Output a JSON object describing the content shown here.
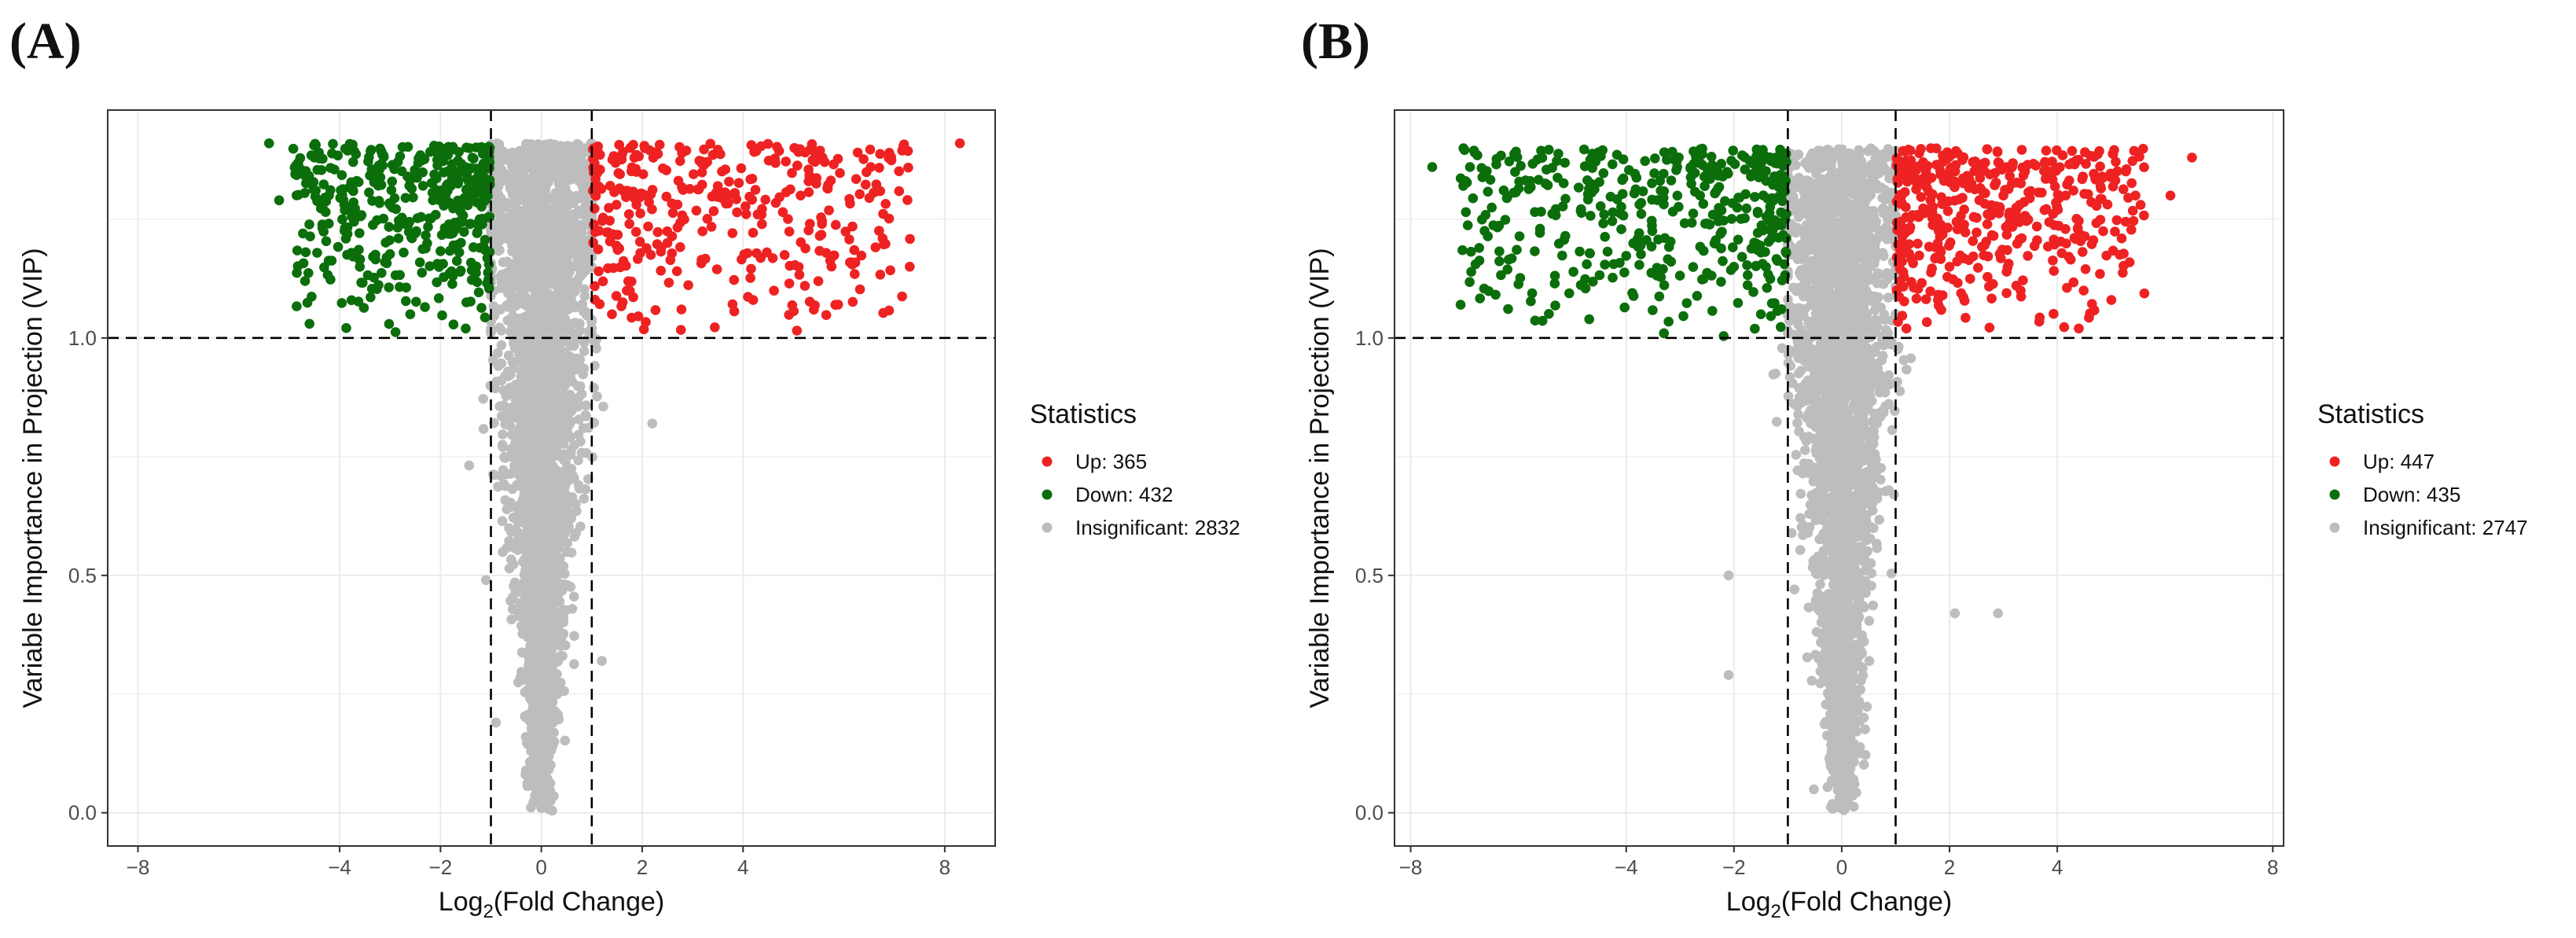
{
  "chart_data": [
    {
      "type": "scatter",
      "panel_label": "(A)",
      "title": "",
      "xlabel_main": "Log",
      "xlabel_sub": "2",
      "xlabel_rest": "(Fold Change)",
      "ylabel": "Variable Importance in Projection (VIP)",
      "xlim": [
        -8.6,
        9.0
      ],
      "ylim": [
        -0.07,
        1.48
      ],
      "x_ticks": [
        -8,
        -4,
        -2,
        0,
        2,
        4,
        8
      ],
      "x_tick_labels": [
        "−8",
        "−4",
        "−2",
        "0",
        "2",
        "4",
        "8"
      ],
      "y_ticks": [
        0.0,
        0.5,
        1.0
      ],
      "y_tick_labels": [
        "0.0",
        "0.5",
        "1.0"
      ],
      "thresholds": {
        "fold_change": [
          -1,
          1
        ],
        "vip": 1.0
      },
      "grid": true,
      "legend": {
        "title": "Statistics",
        "position": "right",
        "entries": [
          {
            "label": "Up: 365",
            "color": "#ee2222"
          },
          {
            "label": "Down: 432",
            "color": "#0b6e0b"
          },
          {
            "label": "Insignificant: 2832",
            "color": "#bdbdbd"
          }
        ]
      },
      "series": [
        {
          "name": "Up",
          "count": 365,
          "color": "#ee2222",
          "x_range": [
            1.0,
            8.3
          ],
          "y_range": [
            1.0,
            1.41
          ],
          "sample": [
            [
              8.3,
              1.41
            ],
            [
              6.9,
              1.39
            ],
            [
              5.3,
              1.33
            ],
            [
              4.2,
              1.08
            ],
            [
              3.5,
              1.32
            ],
            [
              2.5,
              1.2
            ],
            [
              1.4,
              1.05
            ]
          ]
        },
        {
          "name": "Down",
          "count": 432,
          "color": "#0b6e0b",
          "x_range": [
            -5.4,
            -1.0
          ],
          "y_range": [
            1.0,
            1.41
          ],
          "sample": [
            [
              -5.4,
              1.41
            ],
            [
              -5.2,
              1.29
            ],
            [
              -4.5,
              1.38
            ],
            [
              -3.6,
              1.15
            ],
            [
              -2.6,
              1.05
            ],
            [
              -1.5,
              1.02
            ]
          ]
        },
        {
          "name": "Insignificant",
          "count": 2832,
          "color": "#bdbdbd",
          "x_range": [
            -1.7,
            2.3
          ],
          "y_range": [
            0.0,
            1.41
          ],
          "sample": [
            [
              0.0,
              0.01
            ],
            [
              -1.1,
              0.49
            ],
            [
              1.2,
              0.32
            ],
            [
              -0.9,
              0.19
            ],
            [
              2.2,
              0.82
            ],
            [
              0.3,
              1.4
            ]
          ]
        }
      ]
    },
    {
      "type": "scatter",
      "panel_label": "(B)",
      "title": "",
      "xlabel_main": "Log",
      "xlabel_sub": "2",
      "xlabel_rest": "(Fold Change)",
      "ylabel": "Variable Importance in Projection (VIP)",
      "xlim": [
        -8.3,
        8.2
      ],
      "ylim": [
        -0.07,
        1.48
      ],
      "x_ticks": [
        -8,
        -4,
        -2,
        0,
        2,
        4,
        8
      ],
      "x_tick_labels": [
        "−8",
        "−4",
        "−2",
        "0",
        "2",
        "4",
        "8"
      ],
      "y_ticks": [
        0.0,
        0.5,
        1.0
      ],
      "y_tick_labels": [
        "0.0",
        "0.5",
        "1.0"
      ],
      "thresholds": {
        "fold_change": [
          -1,
          1
        ],
        "vip": 1.0
      },
      "grid": true,
      "legend": {
        "title": "Statistics",
        "position": "right",
        "entries": [
          {
            "label": "Up: 447",
            "color": "#ee2222"
          },
          {
            "label": "Down: 435",
            "color": "#0b6e0b"
          },
          {
            "label": "Insignificant: 2747",
            "color": "#bdbdbd"
          }
        ]
      },
      "series": [
        {
          "name": "Up",
          "count": 447,
          "color": "#ee2222",
          "x_range": [
            1.0,
            6.6
          ],
          "y_range": [
            1.0,
            1.4
          ],
          "sample": [
            [
              6.5,
              1.38
            ],
            [
              6.1,
              1.3
            ],
            [
              4.4,
              1.02
            ],
            [
              3.0,
              1.3
            ],
            [
              2.0,
              1.15
            ],
            [
              1.2,
              1.02
            ]
          ]
        },
        {
          "name": "Down",
          "count": 435,
          "color": "#0b6e0b",
          "x_range": [
            -7.6,
            -1.0
          ],
          "y_range": [
            1.0,
            1.4
          ],
          "sample": [
            [
              -7.6,
              1.36
            ],
            [
              -6.9,
              1.36
            ],
            [
              -5.6,
              1.23
            ],
            [
              -3.3,
              1.01
            ],
            [
              -2.0,
              1.15
            ],
            [
              -1.5,
              1.05
            ]
          ]
        },
        {
          "name": "Insignificant",
          "count": 2747,
          "color": "#bdbdbd",
          "x_range": [
            -2.3,
            2.9
          ],
          "y_range": [
            0.0,
            1.4
          ],
          "sample": [
            [
              0.0,
              0.01
            ],
            [
              -2.1,
              0.29
            ],
            [
              -2.1,
              0.5
            ],
            [
              2.1,
              0.42
            ],
            [
              2.9,
              0.42
            ],
            [
              -0.3,
              1.39
            ]
          ]
        }
      ]
    }
  ]
}
